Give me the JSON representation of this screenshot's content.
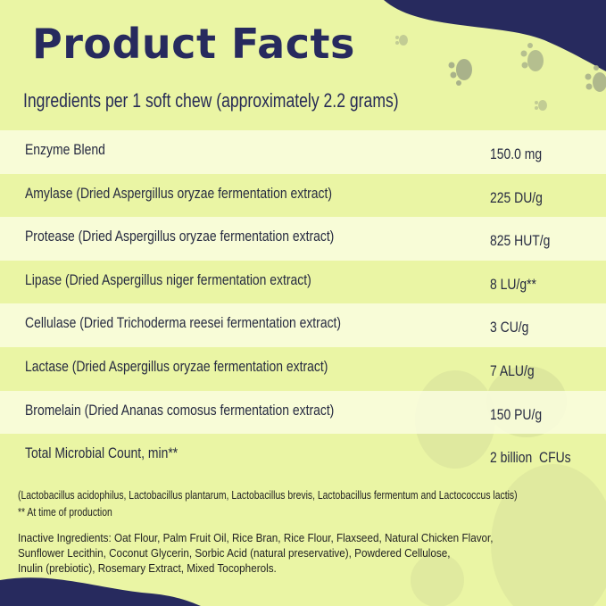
{
  "title": "Product Facts",
  "subtitle": "Ingredients per 1 soft chew (approximately 2.2 grams)",
  "rows": [
    {
      "name": "Enzyme Blend",
      "value": "150.0 mg"
    },
    {
      "name": "Amylase (Dried Aspergillus oryzae fermentation extract)",
      "value": "225 DU/g"
    },
    {
      "name": "Protease (Dried Aspergillus oryzae fermentation extract)",
      "value": "825 HUT/g"
    },
    {
      "name": "Lipase (Dried Aspergillus niger fermentation extract)",
      "value": "8 LU/g**"
    },
    {
      "name": "Cellulase (Dried Trichoderma reesei fermentation extract)",
      "value": "3 CU/g"
    },
    {
      "name": "Lactase (Dried Aspergillus oryzae fermentation extract)",
      "value": "7 ALU/g"
    },
    {
      "name": "Bromelain (Dried Ananas comosus fermentation extract)",
      "value": "150 PU/g"
    },
    {
      "name": "Total Microbial Count, min**",
      "value": "2 billion  CFUs"
    }
  ],
  "notes": {
    "strains": "(Lactobacillus acidophilus, Lactobacillus plantarum, Lactobacillus brevis, Lactobacillus fermentum and Lactococcus lactis)",
    "footnote": "** At time of production"
  },
  "inactive": {
    "line1": "Inactive Ingredients: Oat Flour, Palm Fruit Oil, Rice Bran, Rice Flour, Flaxseed, Natural Chicken Flavor,",
    "line2": "Sunflower Lecithin, Coconut Glycerin, Sorbic Acid (natural preservative), Powdered Cellulose,",
    "line3": "Inulin (prebiotic), Rosemary Extract, Mixed Tocopherols."
  },
  "colors": {
    "background": "#eaf5a4",
    "accent": "#272a5e",
    "paw": "#a9b28a"
  }
}
